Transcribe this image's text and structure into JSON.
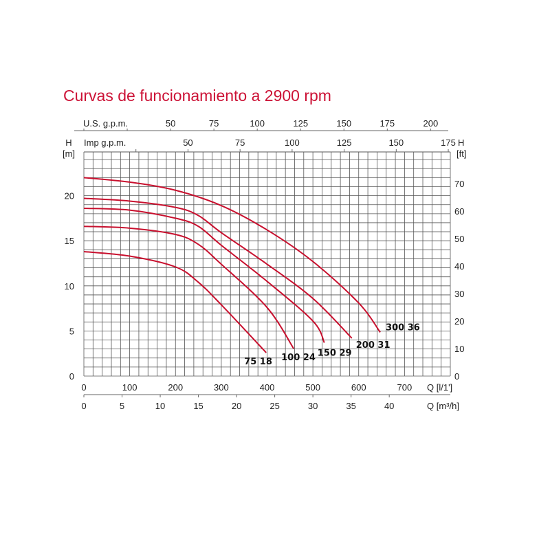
{
  "chart_data": {
    "type": "line",
    "title": "Curvas de funcionamiento a 2900 rpm",
    "xlabel": "Q [l/1']",
    "x2label": "Q [m³/h]",
    "ylabel": "H [m]",
    "y2label": "H [ft]",
    "top_axis_1_label": "U.S. g.p.m.",
    "top_axis_2_label": "Imp g.p.m.",
    "xlim": [
      0,
      800
    ],
    "ylim": [
      0,
      25
    ],
    "grid": true,
    "x_ticks": [
      0,
      100,
      200,
      300,
      400,
      500,
      600,
      700
    ],
    "x2_ticks": [
      0,
      5,
      10,
      15,
      20,
      25,
      30,
      35,
      40
    ],
    "y_ticks": [
      0,
      5,
      10,
      15,
      20
    ],
    "y2_ticks": [
      0,
      10,
      20,
      30,
      40,
      50,
      60,
      70
    ],
    "us_gpm_ticks": [
      50,
      75,
      100,
      125,
      150,
      175,
      200
    ],
    "imp_gpm_ticks": [
      50,
      75,
      100,
      125,
      150,
      175
    ],
    "line_color": "#c8102e",
    "series": [
      {
        "name": "75 18",
        "x": [
          0,
          100,
          200,
          250,
          300,
          398
        ],
        "y": [
          13.8,
          13.3,
          12.1,
          10.4,
          7.9,
          2.6
        ]
      },
      {
        "name": "100 24",
        "x": [
          0,
          100,
          200,
          250,
          300,
          400,
          458
        ],
        "y": [
          16.6,
          16.4,
          15.7,
          14.6,
          12.4,
          7.6,
          3.05
        ]
      },
      {
        "name": "150 29",
        "x": [
          0,
          100,
          200,
          250,
          300,
          400,
          500,
          525
        ],
        "y": [
          18.6,
          18.4,
          17.5,
          16.6,
          14.5,
          10.5,
          6.1,
          3.7
        ]
      },
      {
        "name": "200 31",
        "x": [
          0,
          100,
          200,
          250,
          300,
          400,
          500,
          585
        ],
        "y": [
          19.7,
          19.4,
          18.7,
          17.8,
          15.9,
          12.4,
          8.6,
          4.2
        ]
      },
      {
        "name": "300 36",
        "x": [
          0,
          100,
          200,
          300,
          400,
          500,
          600,
          647
        ],
        "y": [
          22.0,
          21.5,
          20.6,
          18.9,
          16.2,
          12.7,
          8.1,
          4.85
        ]
      }
    ]
  }
}
